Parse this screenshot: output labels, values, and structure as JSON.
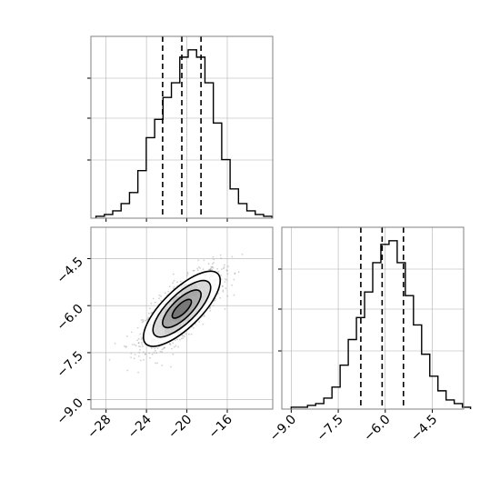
{
  "chart_data": [
    {
      "panel": "top-left",
      "type": "histogram",
      "parameter_index": 0,
      "xlim": [
        -29.5,
        -11.5
      ],
      "bins_edges_start": -29.0,
      "bin_width": 0.83,
      "counts": [
        1,
        2,
        4,
        8,
        14,
        26,
        44,
        54,
        66,
        74,
        88,
        92,
        88,
        74,
        52,
        32,
        16,
        8,
        4,
        2,
        1
      ],
      "quantile_lines": [
        -22.4,
        -20.5,
        -18.6
      ],
      "grid": true,
      "x_tick_labels_shown": false,
      "y_tick_labels_shown": false
    },
    {
      "panel": "bottom-left",
      "type": "scatter-with-2d-contour",
      "xlim": [
        -29.5,
        -11.5
      ],
      "ylim": [
        -9.3,
        -3.5
      ],
      "x_ticks": [
        -28,
        -24,
        -20,
        -16
      ],
      "x_tick_labels": [
        "−28",
        "−24",
        "−20",
        "−16"
      ],
      "y_ticks": [
        -4.5,
        -6.0,
        -7.5,
        -9.0
      ],
      "y_tick_labels": [
        "−4.5",
        "−6.0",
        "−7.5",
        "−9.0"
      ],
      "mean": [
        -20.5,
        -6.1
      ],
      "std": [
        1.9,
        0.6
      ],
      "correlation": 0.75,
      "contour_levels_sigma": [
        0.5,
        1.0,
        1.5,
        2.0
      ],
      "grid": true
    },
    {
      "panel": "bottom-right",
      "type": "histogram",
      "parameter_index": 1,
      "xlim": [
        -9.3,
        -3.5
      ],
      "bins_edges_start": -9.0,
      "bin_width": 0.26,
      "counts": [
        1,
        1,
        2,
        3,
        6,
        12,
        24,
        38,
        50,
        64,
        80,
        90,
        92,
        80,
        62,
        46,
        30,
        18,
        10,
        5,
        3,
        1
      ],
      "quantile_lines": [
        -6.78,
        -6.1,
        -5.42
      ],
      "x_ticks": [
        -9.0,
        -7.5,
        -6.0,
        -4.5
      ],
      "x_tick_labels": [
        "−9.0",
        "−7.5",
        "−6.0",
        "−4.5"
      ],
      "grid": true,
      "y_tick_labels_shown": false
    }
  ],
  "colors": {
    "line": "#000000",
    "grid": "#b0b0b0",
    "frame": "#808080",
    "scatter_point": "#9a9a9a"
  }
}
